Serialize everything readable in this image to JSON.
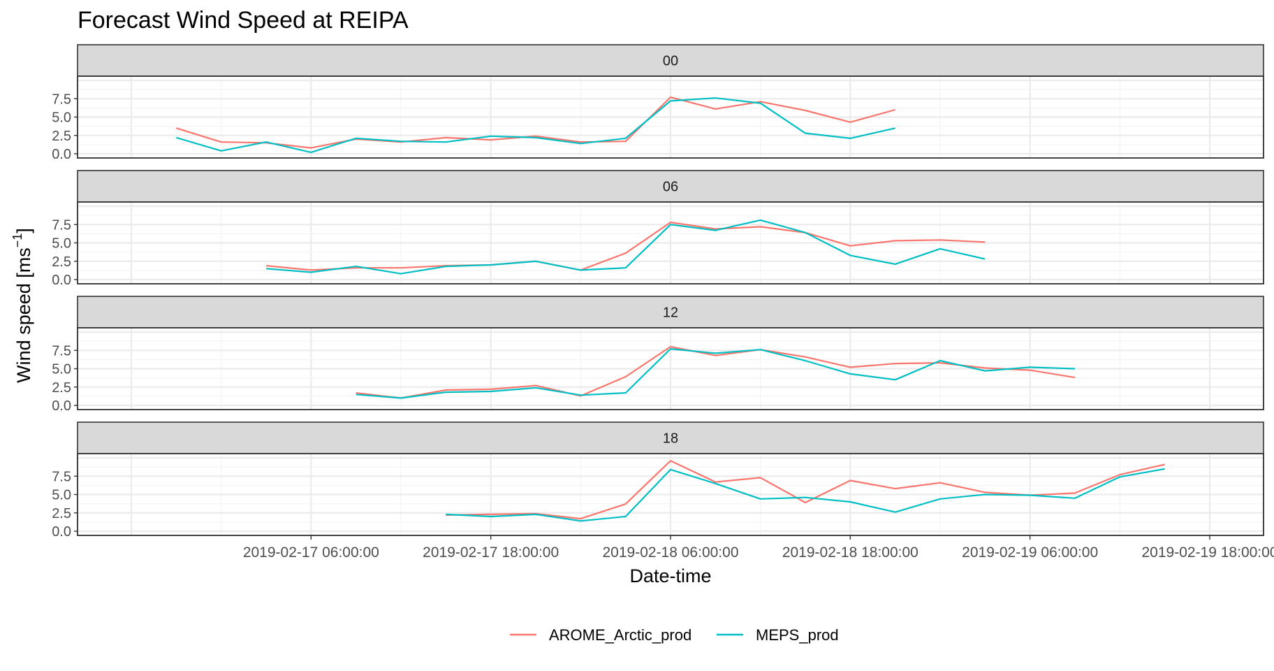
{
  "chart_data": {
    "type": "line",
    "title": "Forecast Wind Speed at REIPA",
    "xlabel": "Date-time",
    "ylabel": "Wind speed [ms",
    "ylabel_sup": "−1",
    "ylabel_close": "]",
    "xlim": [
      "2019-02-16 18:00:00",
      "2019-02-19 18:00:00"
    ],
    "ylim": [
      0,
      10
    ],
    "yticks": [
      0.0,
      2.5,
      5.0,
      7.5
    ],
    "ytick_labels": [
      "0.0",
      "2.5",
      "5.0",
      "7.5"
    ],
    "xtick_labels": [
      "2019-02-17 06:00:00",
      "2019-02-17 18:00:00",
      "2019-02-18 06:00:00",
      "2019-02-18 18:00:00",
      "2019-02-19 06:00:00",
      "2019-02-19 18:00:00"
    ],
    "grid": true,
    "legend_position": "bottom",
    "panels": [
      {
        "label": "00",
        "start": "2019-02-16 21:00:00",
        "series": [
          {
            "name": "AROME_Arctic_prod",
            "color": "#F8766D",
            "values": [
              3.5,
              1.6,
              1.5,
              0.8,
              2.0,
              1.6,
              2.2,
              1.9,
              2.4,
              1.6,
              1.7,
              7.7,
              6.1,
              7.1,
              5.9,
              4.3,
              6.0
            ]
          },
          {
            "name": "MEPS_prod",
            "color": "#00BFC4",
            "values": [
              2.2,
              0.4,
              1.6,
              0.2,
              2.1,
              1.7,
              1.6,
              2.4,
              2.2,
              1.4,
              2.1,
              7.2,
              7.6,
              6.9,
              2.8,
              2.1,
              3.5
            ]
          }
        ]
      },
      {
        "label": "06",
        "start": "2019-02-17 03:00:00",
        "series": [
          {
            "name": "AROME_Arctic_prod",
            "color": "#F8766D",
            "values": [
              1.9,
              1.3,
              1.6,
              1.6,
              1.9,
              2.0,
              2.5,
              1.3,
              3.6,
              7.8,
              6.9,
              7.2,
              6.4,
              4.6,
              5.3,
              5.4,
              5.1
            ]
          },
          {
            "name": "MEPS_prod",
            "color": "#00BFC4",
            "values": [
              1.5,
              1.0,
              1.8,
              0.8,
              1.8,
              2.0,
              2.5,
              1.3,
              1.6,
              7.5,
              6.7,
              8.1,
              6.4,
              3.3,
              2.1,
              4.2,
              2.8
            ]
          }
        ]
      },
      {
        "label": "12",
        "start": "2019-02-17 09:00:00",
        "series": [
          {
            "name": "AROME_Arctic_prod",
            "color": "#F8766D",
            "values": [
              1.7,
              1.0,
              2.1,
              2.2,
              2.7,
              1.3,
              3.9,
              8.0,
              6.8,
              7.6,
              6.6,
              5.2,
              5.7,
              5.8,
              5.1,
              4.8,
              3.8
            ]
          },
          {
            "name": "MEPS_prod",
            "color": "#00BFC4",
            "values": [
              1.5,
              1.0,
              1.8,
              1.9,
              2.4,
              1.4,
              1.7,
              7.7,
              7.1,
              7.6,
              6.1,
              4.3,
              3.5,
              6.1,
              4.7,
              5.2,
              5.0
            ]
          }
        ]
      },
      {
        "label": "18",
        "start": "2019-02-17 15:00:00",
        "series": [
          {
            "name": "AROME_Arctic_prod",
            "color": "#F8766D",
            "values": [
              2.2,
              2.3,
              2.4,
              1.7,
              3.7,
              9.6,
              6.7,
              7.3,
              3.9,
              6.9,
              5.8,
              6.6,
              5.3,
              4.9,
              5.2,
              7.7,
              9.1
            ]
          },
          {
            "name": "MEPS_prod",
            "color": "#00BFC4",
            "values": [
              2.3,
              2.0,
              2.3,
              1.4,
              2.0,
              8.4,
              6.5,
              4.4,
              4.6,
              4.0,
              2.6,
              4.4,
              5.0,
              4.9,
              4.5,
              7.4,
              8.5
            ]
          }
        ]
      }
    ],
    "legend": [
      {
        "name": "AROME_Arctic_prod",
        "color": "#F8766D"
      },
      {
        "name": "MEPS_prod",
        "color": "#00BFC4"
      }
    ]
  }
}
